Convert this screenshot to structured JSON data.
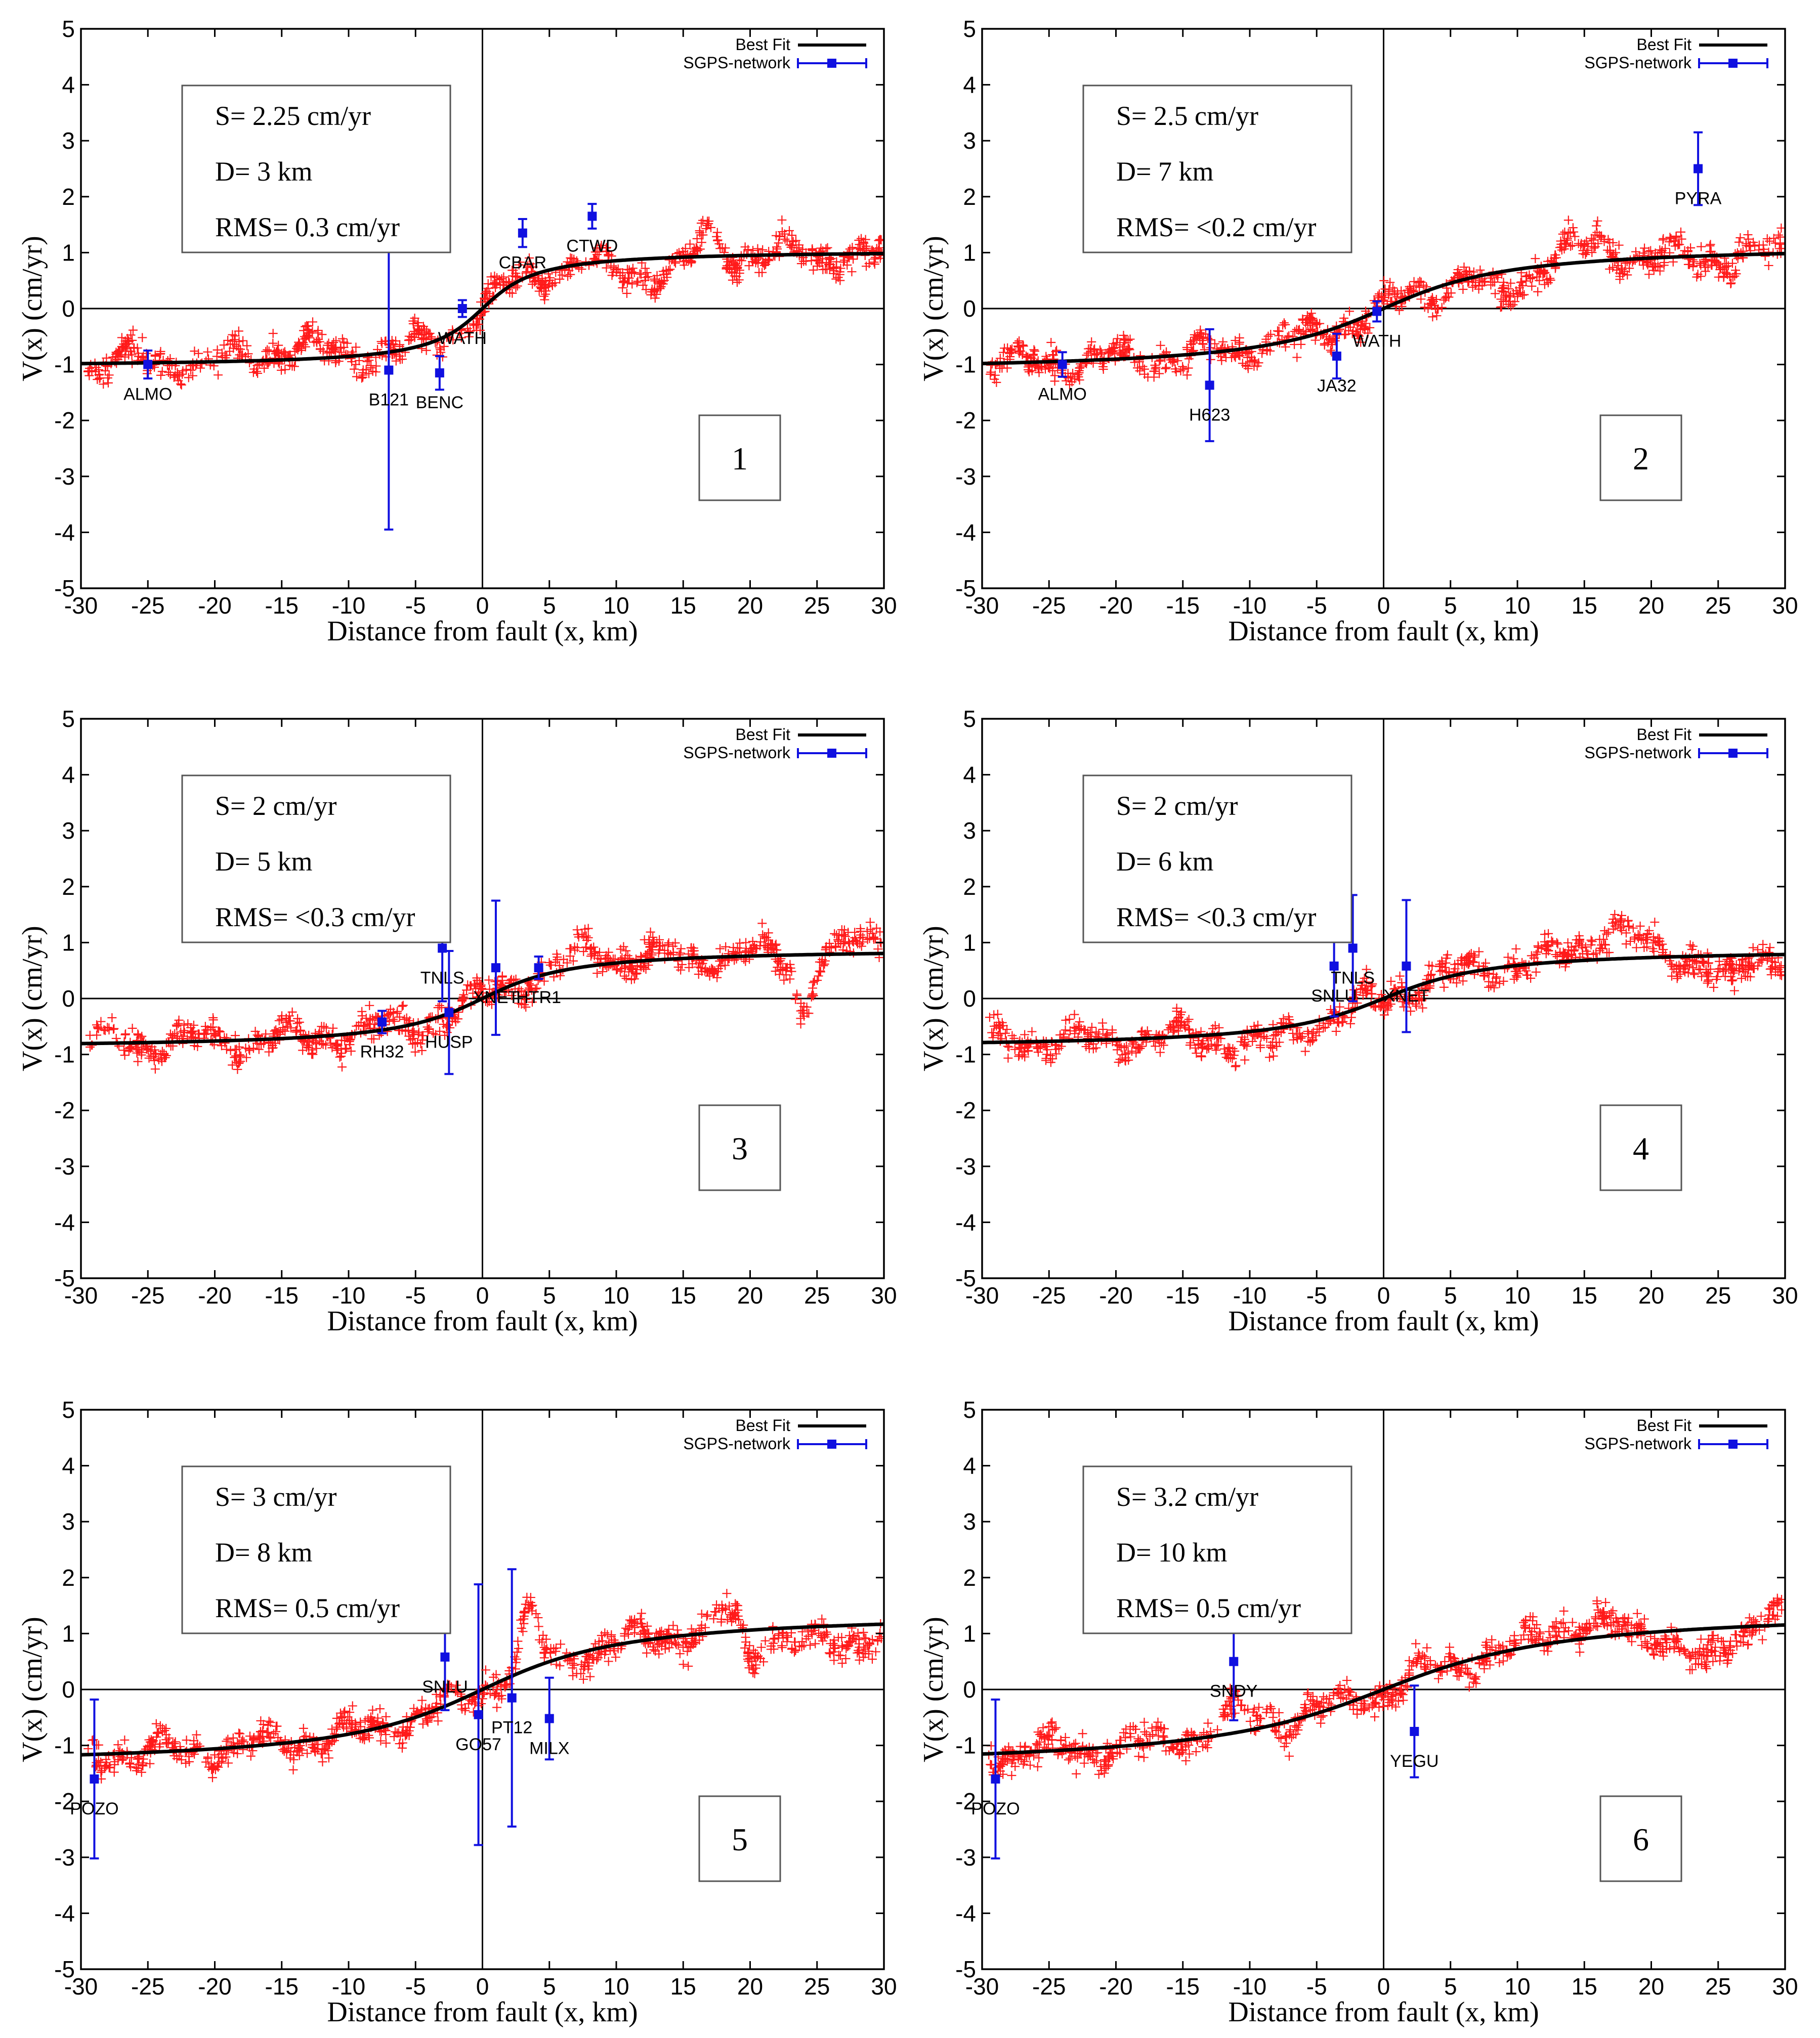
{
  "chart_data": [
    {
      "type": "scatter",
      "panel_label": "1",
      "xlabel": "Distance from fault (x, km)",
      "ylabel": "V(x) (cm/yr)",
      "xlim": [
        -30,
        30
      ],
      "ylim": [
        -5,
        5
      ],
      "xticks": [
        "-30",
        "-25",
        "-20",
        "-15",
        "-10",
        "-5",
        "0",
        "5",
        "10",
        "15",
        "20",
        "25",
        "30"
      ],
      "yticks": [
        "5",
        "4",
        "3",
        "2",
        "1",
        "0",
        "-1",
        "-2",
        "-3",
        "-4",
        "-5"
      ],
      "legend": {
        "best_fit": "Best Fit",
        "network": "SGPS-network"
      },
      "params": [
        "S= 2.25 cm/yr",
        "D= 3 km",
        "RMS= 0.3 cm/yr"
      ],
      "model": {
        "S": 2.25,
        "D": 3,
        "amp": 1.05
      },
      "scatter_seed": 11,
      "scatter_features": [
        [
          -14,
          0.2,
          4
        ],
        [
          -8,
          0.0,
          3
        ],
        [
          12,
          -0.25,
          4
        ],
        [
          17,
          0.4,
          1
        ]
      ],
      "stations": [
        {
          "name": "ALMO",
          "x": -25,
          "v": -1.0,
          "err": 0.25
        },
        {
          "name": "B121",
          "x": -7,
          "v": -1.1,
          "err": 2.85
        },
        {
          "name": "BENC",
          "x": -3.2,
          "v": -1.15,
          "err": 0.3
        },
        {
          "name": "WATH",
          "x": -1.5,
          "v": 0.0,
          "err": 0.15
        },
        {
          "name": "CBAR",
          "x": 3,
          "v": 1.35,
          "err": 0.25
        },
        {
          "name": "CTWD",
          "x": 8.2,
          "v": 1.65,
          "err": 0.22
        }
      ]
    },
    {
      "type": "scatter",
      "panel_label": "2",
      "xlabel": "Distance from fault (x, km)",
      "ylabel": "V(x) (cm/yr)",
      "xlim": [
        -30,
        30
      ],
      "ylim": [
        -5,
        5
      ],
      "xticks": [
        "-30",
        "-25",
        "-20",
        "-15",
        "-10",
        "-5",
        "0",
        "5",
        "10",
        "15",
        "20",
        "25",
        "30"
      ],
      "yticks": [
        "5",
        "4",
        "3",
        "2",
        "1",
        "0",
        "-1",
        "-2",
        "-3",
        "-4",
        "-5"
      ],
      "legend": {
        "best_fit": "Best Fit",
        "network": "SGPS-network"
      },
      "params": [
        "S= 2.5 cm/yr",
        "D= 7 km",
        "RMS= <0.2 cm/yr"
      ],
      "model": {
        "S": 2.5,
        "D": 7,
        "amp": 1.15
      },
      "scatter_seed": 23,
      "scatter_features": [
        [
          9,
          -0.4,
          2
        ],
        [
          15,
          0.3,
          3
        ],
        [
          21,
          -0.05,
          3
        ]
      ],
      "stations": [
        {
          "name": "ALMO",
          "x": -24,
          "v": -1.0,
          "err": 0.22
        },
        {
          "name": "H623",
          "x": -13,
          "v": -1.37,
          "err": 1.0
        },
        {
          "name": "JA32",
          "x": -3.5,
          "v": -0.85,
          "err": 0.4
        },
        {
          "name": "WATH",
          "x": -0.5,
          "v": -0.05,
          "err": 0.18
        },
        {
          "name": "PYRA",
          "x": 23.5,
          "v": 2.5,
          "err": 0.65
        }
      ]
    },
    {
      "type": "scatter",
      "panel_label": "3",
      "xlabel": "Distance from fault (x, km)",
      "ylabel": "V(x) (cm/yr)",
      "xlim": [
        -30,
        30
      ],
      "ylim": [
        -5,
        5
      ],
      "xticks": [
        "-30",
        "-25",
        "-20",
        "-15",
        "-10",
        "-5",
        "0",
        "5",
        "10",
        "15",
        "20",
        "25",
        "30"
      ],
      "yticks": [
        "5",
        "4",
        "3",
        "2",
        "1",
        "0",
        "-1",
        "-2",
        "-3",
        "-4",
        "-5"
      ],
      "legend": {
        "best_fit": "Best Fit",
        "network": "SGPS-network"
      },
      "params": [
        "S= 2 cm/yr",
        "D= 5 km",
        "RMS= <0.3 cm/yr"
      ],
      "model": {
        "S": 2,
        "D": 5,
        "amp": 0.9
      },
      "scatter_seed": 37,
      "scatter_features": [
        [
          8,
          0.3,
          2
        ],
        [
          24,
          -1.0,
          0.8
        ],
        [
          29,
          0.25,
          1.5
        ]
      ],
      "stations": [
        {
          "name": "RH32",
          "x": -7.5,
          "v": -0.42,
          "err": 0.2
        },
        {
          "name": "TNLS",
          "x": -3,
          "v": 0.9,
          "err": 0.95
        },
        {
          "name": "HUSP",
          "x": -2.5,
          "v": -0.25,
          "err": 1.1
        },
        {
          "name": "XNET",
          "x": 1,
          "v": 0.55,
          "err": 1.2
        },
        {
          "name": "HTR1",
          "x": 4.2,
          "v": 0.55,
          "err": 0.2
        }
      ]
    },
    {
      "type": "scatter",
      "panel_label": "4",
      "xlabel": "Distance from fault (x, km)",
      "ylabel": "V(x) (cm/yr)",
      "xlim": [
        -30,
        30
      ],
      "ylim": [
        -5,
        5
      ],
      "xticks": [
        "-30",
        "-25",
        "-20",
        "-15",
        "-10",
        "-5",
        "0",
        "5",
        "10",
        "15",
        "20",
        "25",
        "30"
      ],
      "yticks": [
        "5",
        "4",
        "3",
        "2",
        "1",
        "0",
        "-1",
        "-2",
        "-3",
        "-4",
        "-5"
      ],
      "legend": {
        "best_fit": "Best Fit",
        "network": "SGPS-network"
      },
      "params": [
        "S= 2 cm/yr",
        "D= 6 km",
        "RMS= <0.3 cm/yr"
      ],
      "model": {
        "S": 2,
        "D": 6,
        "amp": 0.9
      },
      "scatter_seed": 41,
      "scatter_features": [
        [
          -9,
          -0.3,
          2.5
        ],
        [
          17,
          0.55,
          2.5
        ],
        [
          26,
          -0.5,
          1.5
        ]
      ],
      "stations": [
        {
          "name": "SNLU",
          "x": -3.7,
          "v": 0.58,
          "err": 0.9
        },
        {
          "name": "TNLS",
          "x": -2.3,
          "v": 0.9,
          "err": 0.95
        },
        {
          "name": "XNET",
          "x": 1.7,
          "v": 0.58,
          "err": 1.18
        }
      ]
    },
    {
      "type": "scatter",
      "panel_label": "5",
      "xlabel": "Distance from fault (x, km)",
      "ylabel": "V(x) (cm/yr)",
      "xlim": [
        -30,
        30
      ],
      "ylim": [
        -5,
        5
      ],
      "xticks": [
        "-30",
        "-25",
        "-20",
        "-15",
        "-10",
        "-5",
        "0",
        "5",
        "10",
        "15",
        "20",
        "25",
        "30"
      ],
      "yticks": [
        "5",
        "4",
        "3",
        "2",
        "1",
        "0",
        "-1",
        "-2",
        "-3",
        "-4",
        "-5"
      ],
      "legend": {
        "best_fit": "Best Fit",
        "network": "SGPS-network"
      },
      "params": [
        "S= 3 cm/yr",
        "D= 8 km",
        "RMS= 0.5 cm/yr"
      ],
      "model": {
        "S": 3,
        "D": 8,
        "amp": 1.4
      },
      "scatter_seed": 53,
      "scatter_features": [
        [
          3.5,
          0.9,
          1
        ],
        [
          18,
          0.3,
          2
        ],
        [
          20,
          -0.8,
          0.6
        ],
        [
          26,
          -0.4,
          3
        ]
      ],
      "stations": [
        {
          "name": "POZO",
          "x": -29,
          "v": -1.6,
          "err": 1.42
        },
        {
          "name": "SNLU",
          "x": -2.8,
          "v": 0.58,
          "err": 0.95
        },
        {
          "name": "GO57",
          "x": -0.3,
          "v": -0.45,
          "err": 2.33
        },
        {
          "name": "PT12",
          "x": 2.2,
          "v": -0.15,
          "err": 2.3
        },
        {
          "name": "MILX",
          "x": 5,
          "v": -0.52,
          "err": 0.73
        }
      ]
    },
    {
      "type": "scatter",
      "panel_label": "6",
      "xlabel": "Distance from fault (x, km)",
      "ylabel": "V(x) (cm/yr)",
      "xlim": [
        -30,
        30
      ],
      "ylim": [
        -5,
        5
      ],
      "xticks": [
        "-30",
        "-25",
        "-20",
        "-15",
        "-10",
        "-5",
        "0",
        "5",
        "10",
        "15",
        "20",
        "25",
        "30"
      ],
      "yticks": [
        "5",
        "4",
        "3",
        "2",
        "1",
        "0",
        "-1",
        "-2",
        "-3",
        "-4",
        "-5"
      ],
      "legend": {
        "best_fit": "Best Fit",
        "network": "SGPS-network"
      },
      "params": [
        "S= 3.2 cm/yr",
        "D= 10 km",
        "RMS= 0.5 cm/yr"
      ],
      "model": {
        "S": 3.2,
        "D": 10,
        "amp": 1.45
      },
      "scatter_seed": 67,
      "scatter_features": [
        [
          -11,
          0.25,
          3
        ],
        [
          14,
          0.3,
          3
        ],
        [
          24,
          -0.7,
          2
        ],
        [
          29,
          0.3,
          1.5
        ]
      ],
      "stations": [
        {
          "name": "POZO",
          "x": -29,
          "v": -1.6,
          "err": 1.42
        },
        {
          "name": "SNDY",
          "x": -11.2,
          "v": 0.5,
          "err": 1.05
        },
        {
          "name": "YEGU",
          "x": 2.3,
          "v": -0.75,
          "err": 0.82
        }
      ]
    }
  ],
  "colors": {
    "scatter": "#ff1a1a",
    "station": "#1010e0",
    "fit": "#000000",
    "axes": "#000000"
  }
}
